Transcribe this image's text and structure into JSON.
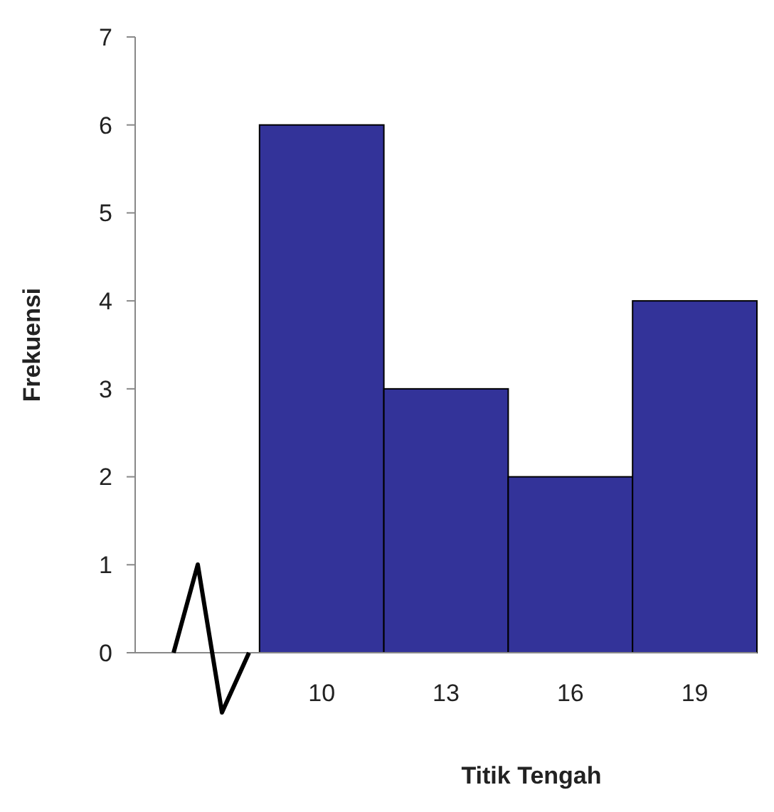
{
  "chart_data": {
    "type": "histogram",
    "xlabel": "Titik Tengah",
    "ylabel": "Frekuensi",
    "bins": [
      8.5,
      11.5,
      14.5,
      17.5,
      20.5
    ],
    "values": [
      6,
      3,
      2,
      4
    ],
    "color": "#333399",
    "xlim": [
      5.5,
      20.5
    ],
    "xticks": [
      10,
      13,
      16,
      19
    ],
    "ylim": [
      0,
      7
    ],
    "yticks": [
      0,
      1,
      2,
      3,
      4,
      5,
      6,
      7
    ],
    "grid": false
  }
}
